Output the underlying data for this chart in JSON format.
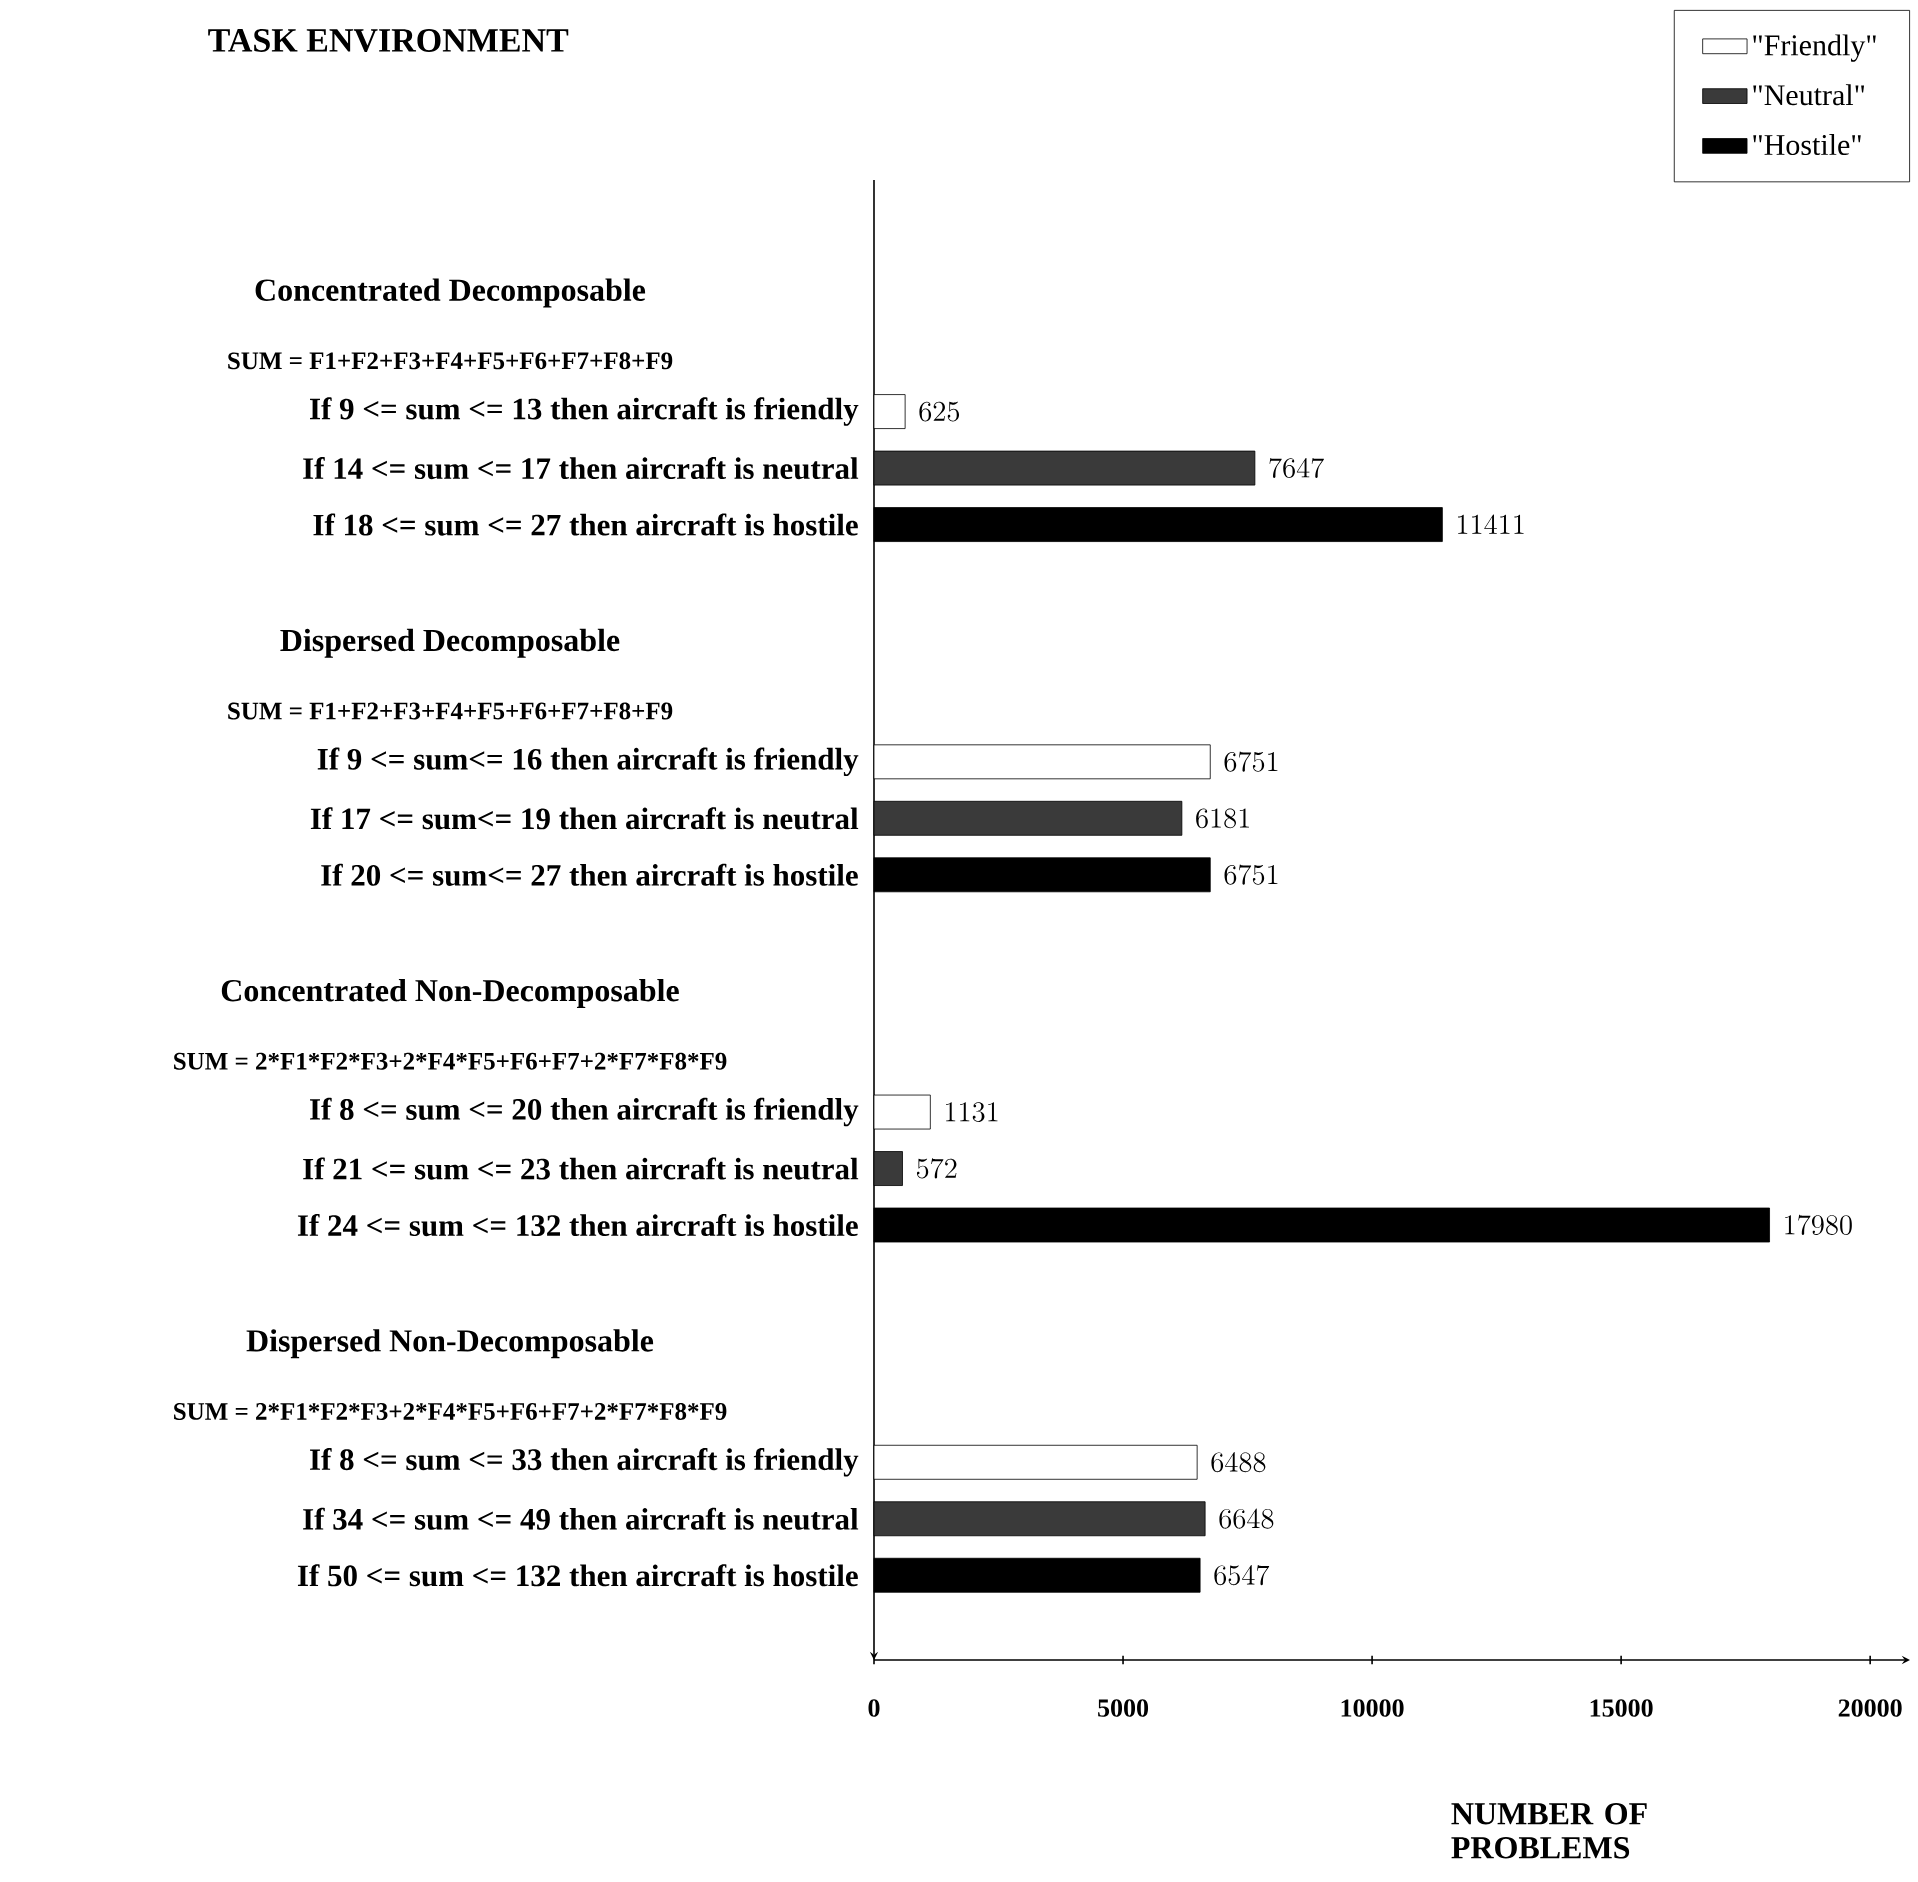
{
  "chart_data": {
    "type": "bar",
    "orientation": "horizontal",
    "title": "TASK ENVIRONMENT",
    "xlabel": "NUMBER OF PROBLEMS",
    "categories": [
      "If  9 <= sum <= 13 then aircraft is friendly",
      "If 14 <= sum <= 17 then aircraft is neutral",
      "If 18 <= sum <= 27 then aircraft is hostile",
      "If  9 <= sum<= 16 then aircraft is friendly",
      "If 17 <= sum<= 19 then aircraft is neutral",
      "If 20 <= sum<= 27 then aircraft is hostile",
      "If  8 <= sum <= 20 then aircraft is friendly",
      "If 21 <= sum <= 23 then aircraft is neutral",
      "If 24 <= sum <= 132 then aircraft is hostile",
      "If  8 <= sum <= 33 then aircraft is friendly",
      "If 34 <= sum <= 49 then aircraft is neutral",
      "If 50 <= sum <= 132 then aircraft is hostile"
    ],
    "series": [
      {
        "name": "\"Friendly\"",
        "color": "#ffffff",
        "values": [
          625,
          null,
          null,
          6751,
          null,
          null,
          1131,
          null,
          null,
          6488,
          null,
          null
        ]
      },
      {
        "name": "\"Neutral\"",
        "color": "#3a3a3a",
        "values": [
          null,
          7647,
          null,
          null,
          6181,
          null,
          null,
          572,
          null,
          null,
          6648,
          null
        ]
      },
      {
        "name": "\"Hostile\"",
        "color": "#000000",
        "values": [
          null,
          null,
          11411,
          null,
          null,
          6751,
          null,
          null,
          17980,
          null,
          null,
          6547
        ]
      }
    ],
    "xlim": [
      0,
      20800
    ],
    "xticks": [
      0,
      5000,
      10000,
      15000,
      20000
    ],
    "data_labels": true,
    "legend": "top right",
    "annotations": [
      "Concentrated Decomposable",
      "SUM = F1+F2+F3+F4+F5+F6+F7+F8+F9",
      "Dispersed Decomposable",
      "SUM = F1+F2+F3+F4+F5+F6+F7+F8+F9",
      "Concentrated Non-Decomposable",
      "SUM = 2*F1*F2*F3+2*F4*F5+F6+F7+2*F7*F8*F9",
      "Dispersed Non-Decomposable",
      "SUM = 2*F1*F2*F3+2*F4*F5+F6+F7+2*F7*F8*F9"
    ]
  }
}
